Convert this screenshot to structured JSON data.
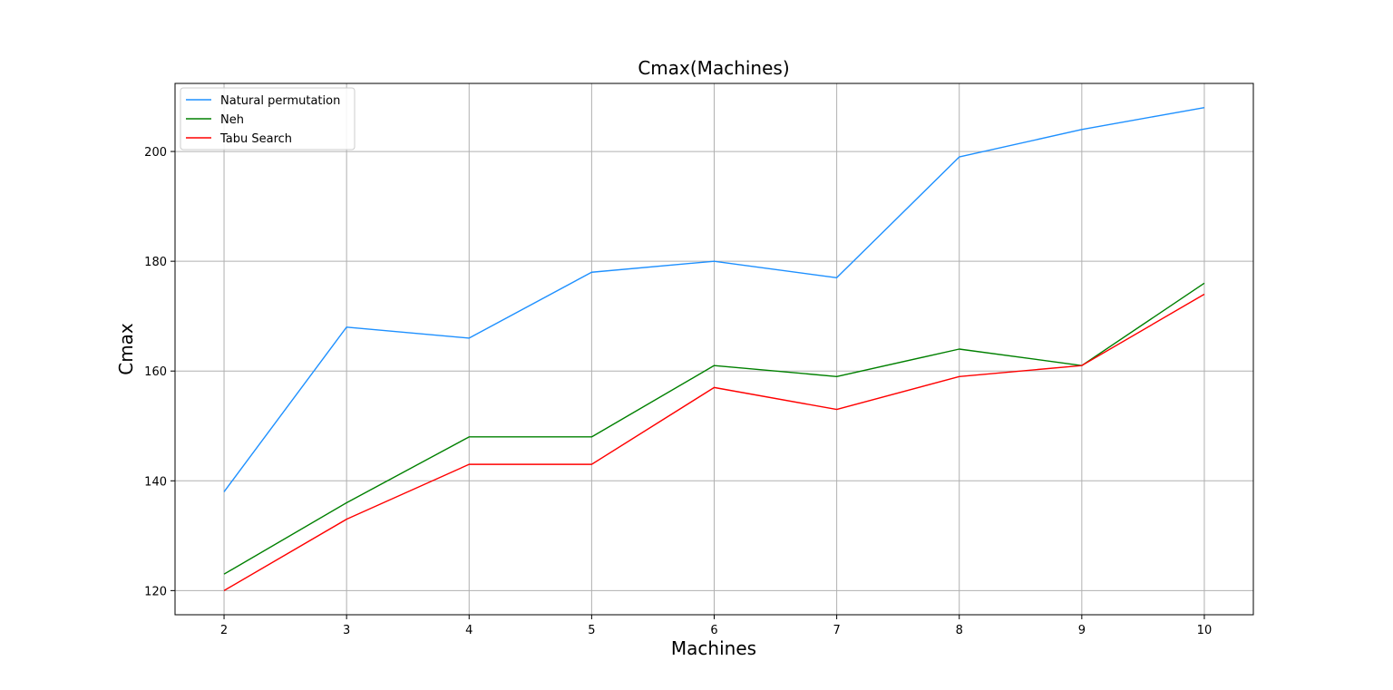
{
  "chart_data": {
    "type": "line",
    "title": "Cmax(Machines)",
    "xlabel": "Machines",
    "ylabel": "Cmax",
    "x": [
      2,
      3,
      4,
      5,
      6,
      7,
      8,
      9,
      10
    ],
    "xlim": [
      1.6,
      10.4
    ],
    "ylim": [
      115.6,
      212.4
    ],
    "xticks": [
      2,
      3,
      4,
      5,
      6,
      7,
      8,
      9,
      10
    ],
    "yticks": [
      120,
      140,
      160,
      180,
      200
    ],
    "grid": true,
    "legend_position": "upper-left",
    "series": [
      {
        "name": "Natural permutation",
        "color": "#1e90ff",
        "values": [
          138,
          168,
          166,
          178,
          180,
          177,
          199,
          204,
          208
        ]
      },
      {
        "name": "Neh",
        "color": "#008000",
        "values": [
          123,
          136,
          148,
          148,
          161,
          159,
          164,
          161,
          176
        ]
      },
      {
        "name": "Tabu Search",
        "color": "#ff0000",
        "values": [
          120,
          133,
          143,
          143,
          157,
          153,
          159,
          161,
          174
        ]
      }
    ]
  }
}
